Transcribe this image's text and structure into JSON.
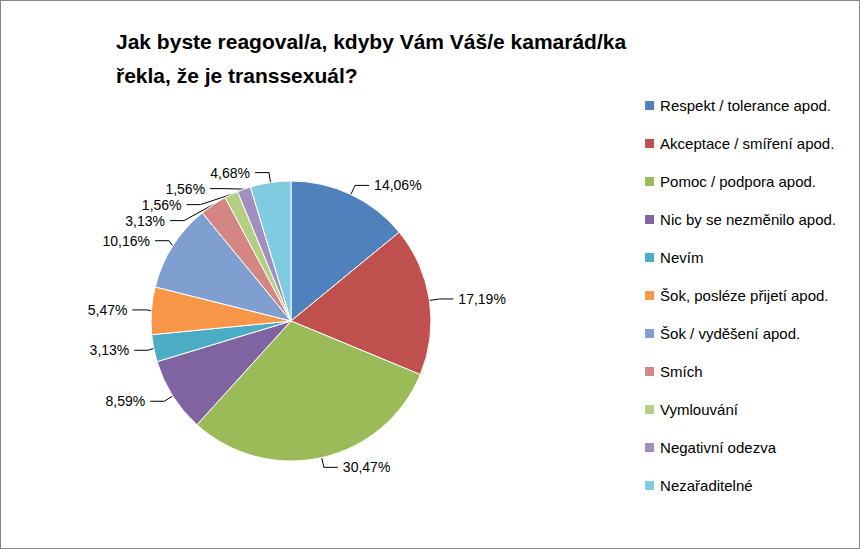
{
  "chart_data": {
    "type": "pie",
    "title": "Jak byste reagoval/a, kdyby Vám Váš/e kamarád/ka řekla, že je transsexuál?",
    "categories": [
      "Respekt / tolerance apod.",
      "Akceptace / smíření apod.",
      "Pomoc / podpora apod.",
      "Nic by se nezměnilo apod.",
      "Nevím",
      "Šok, posléze přijetí apod.",
      "Šok / vyděšení apod.",
      "Smích",
      "Vymlouvání",
      "Negativní odezva",
      "Nezařaditelné"
    ],
    "values": [
      14.06,
      17.19,
      30.47,
      8.59,
      3.13,
      5.47,
      10.16,
      3.13,
      1.56,
      1.56,
      4.68
    ],
    "value_labels": [
      "14,06%",
      "17,19%",
      "30,47%",
      "8,59%",
      "3,13%",
      "5,47%",
      "10,16%",
      "3,13%",
      "1,56%",
      "1,56%",
      "4,68%"
    ],
    "colors": [
      "#4F81BD",
      "#C0504D",
      "#9BBB59",
      "#8064A2",
      "#4BACC6",
      "#F79646",
      "#7F9FD0",
      "#D58583",
      "#B4CF82",
      "#A18FBF",
      "#7FCBDF"
    ],
    "data_labels": true,
    "legend": "right"
  }
}
